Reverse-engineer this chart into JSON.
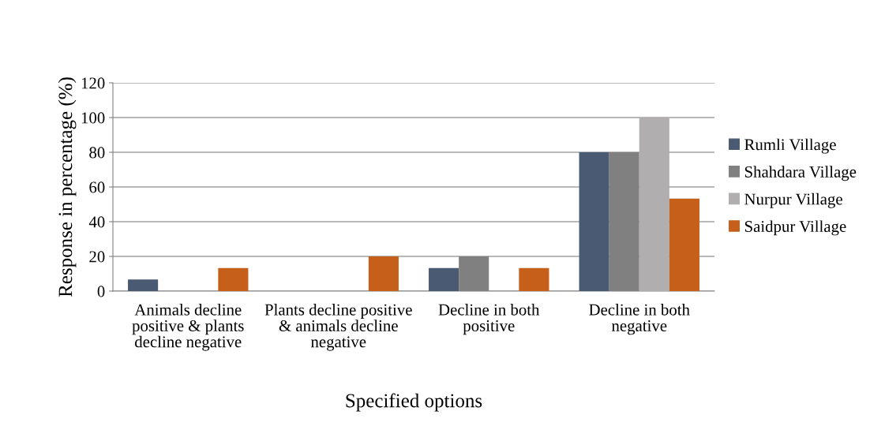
{
  "chart_data": {
    "type": "bar",
    "xlabel": "Specified options",
    "ylabel": "Response in percentage (%)",
    "categories": [
      "Animals decline positive & plants decline negative",
      "Plants decline positive & animals decline negative",
      "Decline in both positive",
      "Decline in both negative"
    ],
    "series": [
      {
        "name": "Rumli Village",
        "color": "#4a5a72",
        "values": [
          6.7,
          0,
          13.3,
          80
        ]
      },
      {
        "name": "Shahdara Village",
        "color": "#808080",
        "values": [
          0,
          0,
          20,
          80
        ]
      },
      {
        "name": "Nurpur Village",
        "color": "#b0aeae",
        "values": [
          0,
          0,
          0,
          100
        ]
      },
      {
        "name": "Saidpur Village",
        "color": "#c55f1a",
        "values": [
          13.3,
          20,
          13.3,
          53.3
        ]
      }
    ],
    "ylim": [
      0,
      120
    ],
    "yticks": [
      0,
      20,
      40,
      60,
      80,
      100,
      120
    ],
    "grid": "y",
    "legend": "right"
  }
}
